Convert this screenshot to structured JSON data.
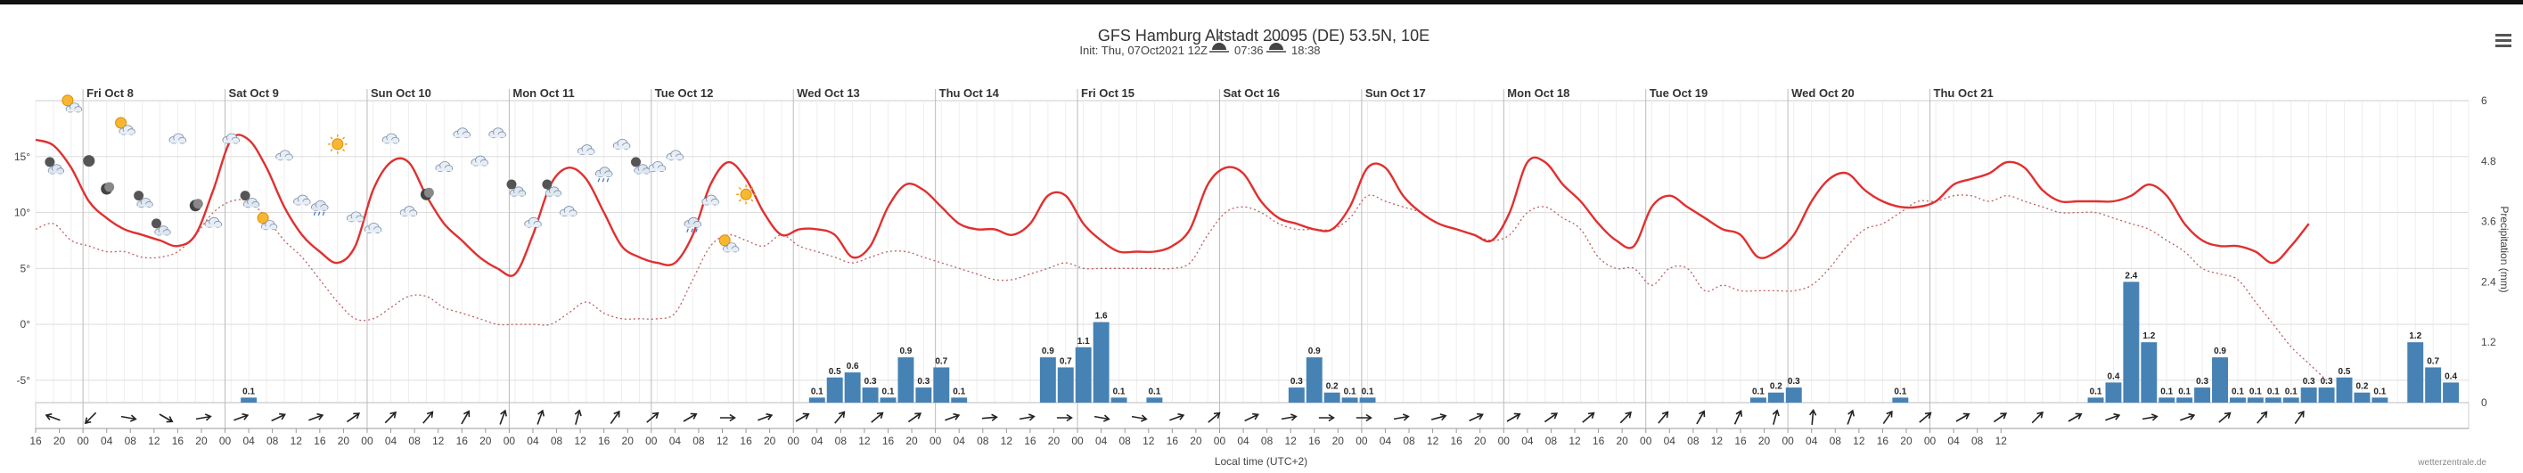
{
  "header": {
    "title": "GFS Hamburg Altstadt 20095 (DE) 53.5N, 10E",
    "init_prefix": "Init: Thu, 07Oct2021 12Z",
    "sunrise": "07:36",
    "sunset": "18:38"
  },
  "footer": {
    "xlabel": "Local time (UTC+2)",
    "credit": "wetterzentrale.de"
  },
  "chart_data": {
    "type": "line",
    "x_unit": "hours since Thu Oct 7 16:00 local",
    "x_step_hours": 3,
    "days": [
      {
        "label": "Fri Oct 8",
        "hour": 8
      },
      {
        "label": "Sat Oct 9",
        "hour": 32
      },
      {
        "label": "Sun Oct 10",
        "hour": 56
      },
      {
        "label": "Mon Oct 11",
        "hour": 80
      },
      {
        "label": "Tue Oct 12",
        "hour": 104
      },
      {
        "label": "Wed Oct 13",
        "hour": 128
      },
      {
        "label": "Thu Oct 14",
        "hour": 152
      },
      {
        "label": "Fri Oct 15",
        "hour": 176
      },
      {
        "label": "Sat Oct 16",
        "hour": 200
      },
      {
        "label": "Sun Oct 17",
        "hour": 224
      },
      {
        "label": "Mon Oct 18",
        "hour": 248
      },
      {
        "label": "Tue Oct 19",
        "hour": 272
      },
      {
        "label": "Wed Oct 20",
        "hour": 296
      },
      {
        "label": "Thu Oct 21",
        "hour": 320
      }
    ],
    "x_tick_labels": [
      "16",
      "20",
      "00",
      "04",
      "08",
      "12",
      "16",
      "20",
      "00",
      "04",
      "08",
      "12",
      "16",
      "20",
      "00",
      "04",
      "08",
      "12",
      "16",
      "20",
      "00",
      "04",
      "08",
      "12",
      "16",
      "20",
      "00",
      "04",
      "08",
      "12",
      "16",
      "20",
      "00",
      "04",
      "08",
      "12",
      "16",
      "20",
      "00",
      "04",
      "08",
      "12",
      "16",
      "20",
      "00",
      "04",
      "08",
      "12",
      "16",
      "20",
      "00",
      "04",
      "08",
      "12",
      "16",
      "20",
      "00",
      "04",
      "08",
      "12",
      "16",
      "20",
      "00",
      "04",
      "08",
      "12",
      "16",
      "20",
      "00",
      "04",
      "08",
      "12",
      "16",
      "20",
      "00",
      "04",
      "08",
      "12",
      "16",
      "20",
      "00",
      "04",
      "08",
      "12"
    ],
    "y_left": {
      "ticks": [
        -5,
        0,
        5,
        10,
        15
      ],
      "tick_labels": [
        "-5°",
        "0°",
        "5°",
        "10°",
        "15°"
      ],
      "range": [
        -7,
        20
      ]
    },
    "y_right": {
      "ticks": [
        0,
        1.2,
        2.4,
        3.6,
        4.8,
        6
      ],
      "tick_labels": [
        "0",
        "1.2",
        "2.4",
        "3.6",
        "4.8",
        "6"
      ],
      "range": [
        0,
        6
      ],
      "label": "Precipitation (mm)"
    },
    "series": [
      {
        "kind": "temperature",
        "color": "#e03030",
        "values": [
          16.5,
          16,
          14,
          11,
          9.5,
          8.5,
          8,
          7.5,
          7,
          8,
          12,
          16.5,
          16.5,
          14,
          10.5,
          8,
          6.5,
          5.5,
          7,
          12,
          14.5,
          14.5,
          11.5,
          9,
          7.5,
          6,
          5,
          4.5,
          8,
          12.5,
          14,
          13,
          10,
          7,
          6,
          5.5,
          5.5,
          8,
          12.5,
          14.5,
          13,
          10,
          8,
          8.5,
          8.5,
          8,
          6,
          7,
          10.5,
          12.5,
          12,
          10.5,
          9,
          8.5,
          8.5,
          8,
          9,
          11.5,
          11.5,
          9,
          7.5,
          6.5,
          6.5,
          6.5,
          7,
          8.5,
          12.5,
          14,
          13.5,
          11,
          9.5,
          9,
          8.5,
          8.5,
          10.5,
          14,
          14,
          11.5,
          10,
          9,
          8.5,
          8,
          7.5,
          10,
          14.5,
          14.5,
          12.5,
          11,
          9,
          7.5,
          7,
          10.5,
          11.5,
          10.5,
          9.5,
          8.5,
          8,
          6,
          6.5,
          8,
          11,
          13,
          13.5,
          12,
          11,
          10.5,
          10.5,
          11,
          12.5,
          13,
          13.5,
          14.5,
          14,
          12,
          11,
          11,
          11,
          11,
          11.5,
          12.5,
          11.5,
          9,
          7.5,
          7,
          7,
          6.5,
          5.5,
          7,
          9
        ]
      },
      {
        "kind": "dewpoint",
        "color": "#c06060",
        "values": [
          8.5,
          9,
          7.5,
          7,
          6.5,
          6.5,
          6,
          6,
          6.5,
          8,
          10,
          11,
          11,
          9.5,
          7.5,
          6,
          4,
          2,
          0.5,
          0.5,
          1.5,
          2.5,
          2.5,
          1.5,
          1,
          0.5,
          0,
          0,
          0,
          0,
          1,
          2,
          1,
          0.5,
          0.5,
          0.5,
          1,
          4,
          7,
          8,
          7.5,
          7,
          8,
          7,
          6.5,
          6,
          5.5,
          6,
          6.5,
          6.5,
          6,
          5.5,
          5,
          4.5,
          4,
          4,
          4.5,
          5,
          5.5,
          5,
          5,
          5,
          5,
          5,
          5,
          5.5,
          8,
          10,
          10.5,
          10,
          9,
          8.5,
          8.5,
          8.5,
          9.5,
          11.5,
          11,
          10.5,
          10,
          9,
          8.5,
          8,
          7.5,
          8,
          10,
          10.5,
          9.5,
          8.5,
          6,
          5,
          5,
          3.5,
          5,
          5,
          3,
          3.5,
          3,
          3,
          3,
          3,
          3.5,
          5,
          7,
          8.5,
          9,
          10,
          11,
          11,
          11.5,
          11.5,
          11,
          11.5,
          11,
          10.5,
          10,
          10,
          10,
          9.5,
          9,
          8.5,
          7.5,
          6.5,
          5,
          4.5,
          4,
          2,
          0,
          -2,
          -3.5,
          -5
        ]
      }
    ],
    "precip": [
      {
        "hour": 36,
        "value": 0.1
      },
      {
        "hour": 132,
        "value": 0.1
      },
      {
        "hour": 135,
        "value": 0.5
      },
      {
        "hour": 138,
        "value": 0.6
      },
      {
        "hour": 141,
        "value": 0.3
      },
      {
        "hour": 144,
        "value": 0.1
      },
      {
        "hour": 147,
        "value": 0.9
      },
      {
        "hour": 150,
        "value": 0.3
      },
      {
        "hour": 153,
        "value": 0.7
      },
      {
        "hour": 156,
        "value": 0.1
      },
      {
        "hour": 171,
        "value": 0.9
      },
      {
        "hour": 174,
        "value": 0.7
      },
      {
        "hour": 177,
        "value": 1.1
      },
      {
        "hour": 180,
        "value": 1.6
      },
      {
        "hour": 183,
        "value": 0.1
      },
      {
        "hour": 189,
        "value": 0.1
      },
      {
        "hour": 213,
        "value": 0.3
      },
      {
        "hour": 216,
        "value": 0.9
      },
      {
        "hour": 219,
        "value": 0.2
      },
      {
        "hour": 222,
        "value": 0.1
      },
      {
        "hour": 225,
        "value": 0.1
      },
      {
        "hour": 291,
        "value": 0.1
      },
      {
        "hour": 294,
        "value": 0.2
      },
      {
        "hour": 297,
        "value": 0.3
      },
      {
        "hour": 315,
        "value": 0.1
      },
      {
        "hour": 348,
        "value": 0.1
      },
      {
        "hour": 351,
        "value": 0.4
      },
      {
        "hour": 354,
        "value": 2.4
      },
      {
        "hour": 357,
        "value": 1.2
      },
      {
        "hour": 360,
        "value": 0.1
      },
      {
        "hour": 363,
        "value": 0.1
      },
      {
        "hour": 366,
        "value": 0.3
      },
      {
        "hour": 369,
        "value": 0.9
      },
      {
        "hour": 372,
        "value": 0.1
      },
      {
        "hour": 375,
        "value": 0.1
      },
      {
        "hour": 378,
        "value": 0.1
      },
      {
        "hour": 381,
        "value": 0.1
      },
      {
        "hour": 384,
        "value": 0.3
      },
      {
        "hour": 387,
        "value": 0.3
      },
      {
        "hour": 390,
        "value": 0.5
      },
      {
        "hour": 393,
        "value": 0.2
      },
      {
        "hour": 396,
        "value": 0.1
      },
      {
        "hour": 402,
        "value": 1.2
      },
      {
        "hour": 405,
        "value": 0.7
      },
      {
        "hour": 408,
        "value": 0.4
      }
    ],
    "icons": [
      {
        "hour": 3,
        "t": 13,
        "icon": "night-cloud-icon"
      },
      {
        "hour": 6,
        "t": 18.5,
        "icon": "sun-cloud-icon"
      },
      {
        "hour": 9,
        "t": 13.5,
        "icon": "night-icon"
      },
      {
        "hour": 12,
        "t": 11,
        "icon": "moon-icon"
      },
      {
        "hour": 15,
        "t": 16.5,
        "icon": "sun-cloud-icon"
      },
      {
        "hour": 18,
        "t": 10,
        "icon": "night-cloud-icon"
      },
      {
        "hour": 21,
        "t": 7.5,
        "icon": "night-cloud-icon"
      },
      {
        "hour": 24,
        "t": 15.5,
        "icon": "cloud-icon"
      },
      {
        "hour": 27,
        "t": 9.5,
        "icon": "moon-icon"
      },
      {
        "hour": 30,
        "t": 8,
        "icon": "cloud-icon"
      },
      {
        "hour": 33,
        "t": 15.5,
        "icon": "cloud-icon"
      },
      {
        "hour": 36,
        "t": 10,
        "icon": "night-cloud-icon"
      },
      {
        "hour": 39,
        "t": 8,
        "icon": "sun-cloud-icon"
      },
      {
        "hour": 42,
        "t": 14,
        "icon": "cloud-icon"
      },
      {
        "hour": 45,
        "t": 10,
        "icon": "cloud-icon"
      },
      {
        "hour": 48,
        "t": 9.5,
        "icon": "rain-cloud-icon"
      },
      {
        "hour": 51,
        "t": 15,
        "icon": "sun-icon"
      },
      {
        "hour": 54,
        "t": 8.5,
        "icon": "cloud-icon"
      },
      {
        "hour": 57,
        "t": 7.5,
        "icon": "cloud-icon"
      },
      {
        "hour": 60,
        "t": 15.5,
        "icon": "cloud-icon"
      },
      {
        "hour": 63,
        "t": 9,
        "icon": "cloud-icon"
      },
      {
        "hour": 66,
        "t": 10.5,
        "icon": "moon-icon"
      },
      {
        "hour": 69,
        "t": 13,
        "icon": "cloud-icon"
      },
      {
        "hour": 72,
        "t": 16,
        "icon": "cloud-icon"
      },
      {
        "hour": 75,
        "t": 13.5,
        "icon": "cloud-icon"
      },
      {
        "hour": 78,
        "t": 16,
        "icon": "cloud-icon"
      },
      {
        "hour": 81,
        "t": 11,
        "icon": "night-cloud-icon"
      },
      {
        "hour": 84,
        "t": 8,
        "icon": "cloud-icon"
      },
      {
        "hour": 87,
        "t": 11,
        "icon": "night-cloud-icon"
      },
      {
        "hour": 90,
        "t": 9,
        "icon": "cloud-icon"
      },
      {
        "hour": 93,
        "t": 14.5,
        "icon": "cloud-icon"
      },
      {
        "hour": 96,
        "t": 12.5,
        "icon": "rain-cloud-icon"
      },
      {
        "hour": 99,
        "t": 15,
        "icon": "cloud-icon"
      },
      {
        "hour": 102,
        "t": 13,
        "icon": "night-cloud-icon"
      },
      {
        "hour": 105,
        "t": 13,
        "icon": "cloud-icon"
      },
      {
        "hour": 108,
        "t": 14,
        "icon": "cloud-icon"
      },
      {
        "hour": 111,
        "t": 8,
        "icon": "rain-cloud-icon"
      },
      {
        "hour": 114,
        "t": 10,
        "icon": "cloud-icon"
      },
      {
        "hour": 117,
        "t": 6,
        "icon": "sun-cloud-icon"
      },
      {
        "hour": 120,
        "t": 10.5,
        "icon": "sun-icon"
      }
    ],
    "wind_arrows_deg": [
      110,
      45,
      280,
      300,
      260,
      250,
      245,
      250,
      235,
      225,
      220,
      210,
      200,
      200,
      195,
      215,
      230,
      240,
      270,
      250,
      240,
      220,
      230,
      235,
      250,
      265,
      260,
      270,
      280,
      280,
      250,
      230,
      245,
      260,
      270,
      270,
      260,
      255,
      245,
      240,
      235,
      230,
      225,
      220,
      210,
      205,
      195,
      185,
      200,
      215,
      230,
      240,
      235,
      225,
      240,
      250,
      260,
      250,
      230,
      220,
      215
    ]
  }
}
